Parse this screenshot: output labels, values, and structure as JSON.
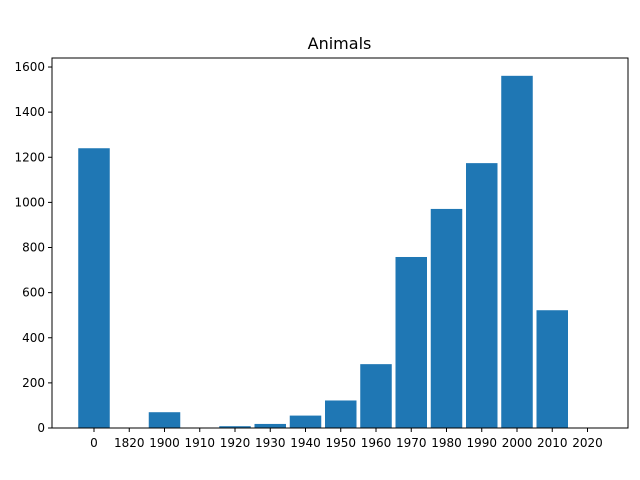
{
  "chart_data": {
    "type": "bar",
    "title": "Animals",
    "xlabel": "",
    "ylabel": "",
    "categories": [
      "0",
      "1820",
      "1900",
      "1910",
      "1920",
      "1930",
      "1940",
      "1950",
      "1960",
      "1970",
      "1980",
      "1990",
      "2000",
      "2010",
      "2020"
    ],
    "values": [
      1240,
      0,
      70,
      0,
      8,
      18,
      55,
      122,
      283,
      758,
      971,
      1174,
      1561,
      522,
      0
    ],
    "ylim": [
      0,
      1640
    ],
    "yticks": [
      0,
      200,
      400,
      600,
      800,
      1000,
      1200,
      1400,
      1600
    ],
    "grid": false,
    "legend": "none",
    "bar_color": "#1f77b4"
  }
}
